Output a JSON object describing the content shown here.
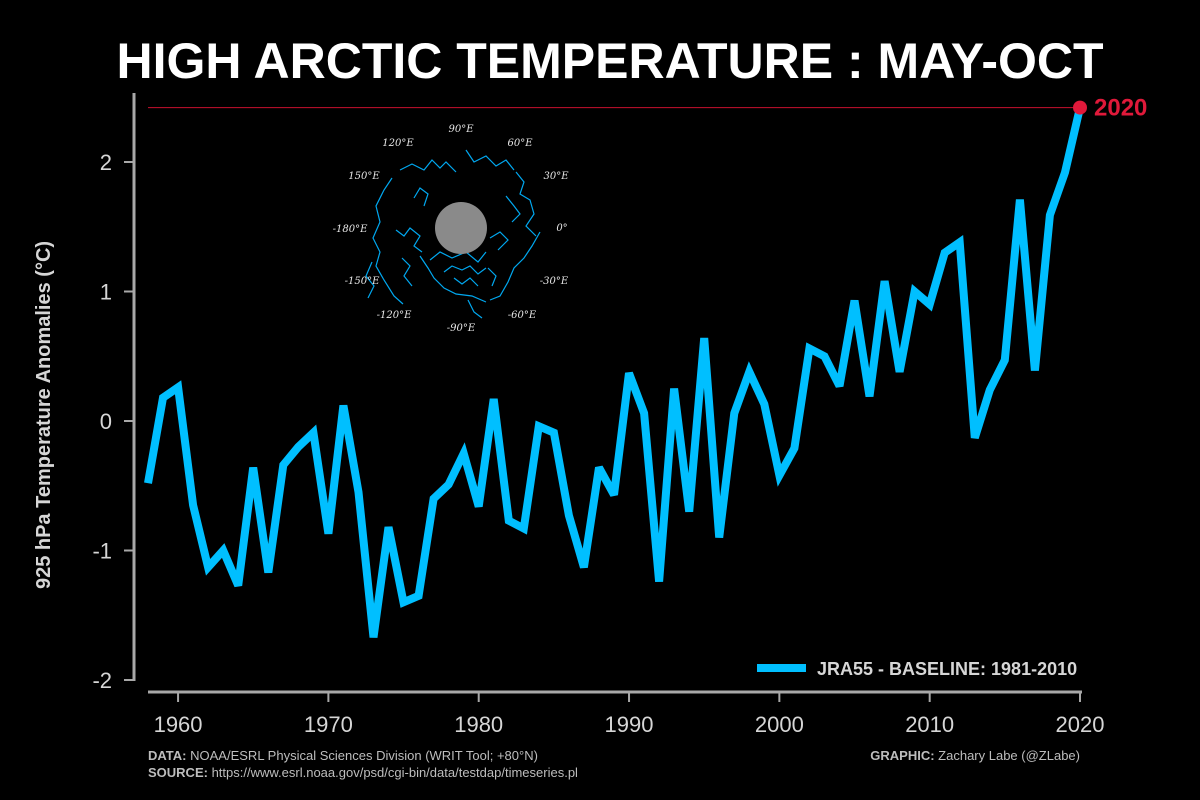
{
  "chart_data": {
    "type": "line",
    "title": "HIGH ARCTIC TEMPERATURE : MAY-OCT",
    "ylabel": "925 hPa Temperature Anomalies (°C)",
    "xlabel": "",
    "xlim": [
      1958,
      2020
    ],
    "ylim": [
      -2,
      2.4
    ],
    "x_ticks": [
      "1960",
      "1970",
      "1980",
      "1990",
      "2000",
      "2010",
      "2020"
    ],
    "y_ticks": [
      "-2",
      "-1",
      "0",
      "1",
      "2"
    ],
    "grid": false,
    "legend_position": "bottom-right",
    "series": [
      {
        "name": "JRA55 - BASELINE: 1981-2010",
        "color": "#00bfff",
        "x": [
          1958,
          1959,
          1960,
          1961,
          1962,
          1963,
          1964,
          1965,
          1966,
          1967,
          1968,
          1969,
          1970,
          1971,
          1972,
          1973,
          1974,
          1975,
          1976,
          1977,
          1978,
          1979,
          1980,
          1981,
          1982,
          1983,
          1984,
          1985,
          1986,
          1987,
          1988,
          1989,
          1990,
          1991,
          1992,
          1993,
          1994,
          1995,
          1996,
          1997,
          1998,
          1999,
          2000,
          2001,
          2002,
          2003,
          2004,
          2005,
          2006,
          2007,
          2008,
          2009,
          2010,
          2011,
          2012,
          2013,
          2014,
          2015,
          2016,
          2017,
          2018,
          2019,
          2020
        ],
        "values": [
          -0.48,
          0.18,
          0.26,
          -0.65,
          -1.13,
          -1.0,
          -1.27,
          -0.36,
          -1.17,
          -0.34,
          -0.2,
          -0.09,
          -0.87,
          0.12,
          -0.55,
          -1.67,
          -0.82,
          -1.4,
          -1.35,
          -0.6,
          -0.49,
          -0.25,
          -0.66,
          0.17,
          -0.77,
          -0.83,
          -0.04,
          -0.09,
          -0.73,
          -1.13,
          -0.36,
          -0.57,
          0.37,
          0.06,
          -1.24,
          0.25,
          -0.7,
          0.64,
          -0.9,
          0.06,
          0.38,
          0.13,
          -0.42,
          -0.21,
          0.56,
          0.5,
          0.27,
          0.93,
          0.19,
          1.08,
          0.38,
          1.0,
          0.9,
          1.3,
          1.38,
          -0.13,
          0.24,
          0.47,
          1.71,
          0.39,
          1.59,
          1.92,
          2.42
        ]
      }
    ],
    "highlight": {
      "year": "2020",
      "value": 2.42,
      "color": "#e0193a"
    }
  },
  "inset_map": {
    "labels": [
      "90°E",
      "60°E",
      "30°E",
      "0°",
      "-30°E",
      "-60°E",
      "-90°E",
      "-120°E",
      "-150°E",
      "-180°E",
      "150°E",
      "120°E"
    ]
  },
  "footer": {
    "data_label": "DATA:",
    "data_text": "NOAA/ESRL Physical Sciences Division (WRIT Tool; +80°N)",
    "source_label": "SOURCE:",
    "source_text": "https://www.esrl.noaa.gov/psd/cgi-bin/data/testdap/timeseries.pl",
    "graphic_label": "GRAPHIC:",
    "graphic_text": "Zachary Labe (@ZLabe)"
  }
}
